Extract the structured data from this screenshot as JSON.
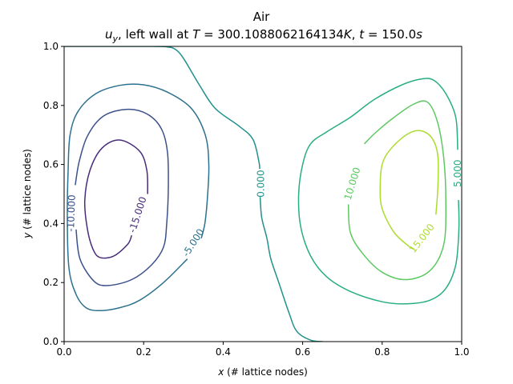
{
  "chart_data": {
    "type": "contour",
    "title": "Air",
    "subtitle_parts": {
      "var": "u",
      "var_sub": "y",
      "mid": ", left wall at ",
      "T_sym": "T",
      "T_val": " = 300.1088062164134",
      "T_unit": "K",
      "sep": ", ",
      "t_sym": "t",
      "t_val": " = 150.0",
      "t_unit": "s"
    },
    "xlabel_var": "x",
    "xlabel_rest": " (# lattice nodes)",
    "ylabel_var": "y",
    "ylabel_rest": " (# lattice nodes)",
    "xlim": [
      0.0,
      1.0
    ],
    "ylim": [
      0.0,
      1.0
    ],
    "x_ticks": [
      "0.0",
      "0.2",
      "0.4",
      "0.6",
      "0.8",
      "1.0"
    ],
    "y_ticks": [
      "0.0",
      "0.2",
      "0.4",
      "0.6",
      "0.8",
      "1.0"
    ],
    "grid": false,
    "levels": [
      {
        "level": -15.0,
        "label": "-15.000",
        "color": "#472c7a",
        "label_pos": [
          0.185,
          0.43
        ],
        "label_angle": -72,
        "paths": [
          [
            [
              0.21,
              0.5
            ],
            [
              0.208,
              0.58
            ],
            [
              0.19,
              0.645
            ],
            [
              0.14,
              0.683
            ],
            [
              0.095,
              0.655
            ],
            [
              0.065,
              0.58
            ],
            [
              0.052,
              0.48
            ],
            [
              0.058,
              0.385
            ],
            [
              0.072,
              0.315
            ],
            [
              0.09,
              0.285
            ],
            [
              0.125,
              0.29
            ],
            [
              0.16,
              0.33
            ],
            [
              0.17,
              0.36
            ]
          ]
        ]
      },
      {
        "level": -10.0,
        "label": "-10.000",
        "color": "#3b518b",
        "label_pos": [
          0.018,
          0.435
        ],
        "label_angle": -88,
        "paths": [
          [
            [
              0.03,
              0.38
            ],
            [
              0.04,
              0.28
            ],
            [
              0.075,
              0.205
            ],
            [
              0.11,
              0.19
            ],
            [
              0.17,
              0.21
            ],
            [
              0.22,
              0.26
            ],
            [
              0.25,
              0.32
            ],
            [
              0.258,
              0.4
            ],
            [
              0.262,
              0.52
            ],
            [
              0.26,
              0.64
            ],
            [
              0.245,
              0.72
            ],
            [
              0.21,
              0.77
            ],
            [
              0.16,
              0.787
            ],
            [
              0.1,
              0.765
            ],
            [
              0.06,
              0.7
            ],
            [
              0.038,
              0.61
            ],
            [
              0.028,
              0.53
            ]
          ]
        ]
      },
      {
        "level": -5.0,
        "label": "-5.000",
        "color": "#2c718e",
        "label_pos": [
          0.325,
          0.335
        ],
        "label_angle": -57,
        "paths": [
          [
            [
              0.31,
              0.28
            ],
            [
              0.25,
              0.2
            ],
            [
              0.19,
              0.14
            ],
            [
              0.14,
              0.115
            ],
            [
              0.09,
              0.105
            ],
            [
              0.055,
              0.115
            ],
            [
              0.03,
              0.16
            ],
            [
              0.012,
              0.25
            ],
            [
              0.008,
              0.42
            ],
            [
              0.01,
              0.58
            ],
            [
              0.015,
              0.7
            ],
            [
              0.035,
              0.78
            ],
            [
              0.08,
              0.84
            ],
            [
              0.14,
              0.868
            ],
            [
              0.2,
              0.87
            ],
            [
              0.26,
              0.845
            ],
            [
              0.32,
              0.79
            ],
            [
              0.355,
              0.7
            ],
            [
              0.364,
              0.6
            ],
            [
              0.36,
              0.48
            ],
            [
              0.354,
              0.4
            ],
            [
              0.345,
              0.35
            ]
          ]
        ]
      },
      {
        "level": 0.0,
        "label": "0.000",
        "color": "#21918c",
        "label_pos": [
          0.495,
          0.535
        ],
        "label_angle": -90,
        "paths": [
          [
            [
              0.0,
              1.0
            ],
            [
              0.22,
              1.0
            ],
            [
              0.26,
              0.998
            ],
            [
              0.28,
              0.99
            ],
            [
              0.3,
              0.96
            ],
            [
              0.34,
              0.87
            ],
            [
              0.38,
              0.79
            ],
            [
              0.44,
              0.73
            ],
            [
              0.475,
              0.685
            ],
            [
              0.49,
              0.61
            ],
            [
              0.492,
              0.585
            ]
          ],
          [
            [
              0.493,
              0.49
            ],
            [
              0.497,
              0.42
            ],
            [
              0.51,
              0.35
            ],
            [
              0.52,
              0.28
            ],
            [
              0.54,
              0.2
            ],
            [
              0.565,
              0.1
            ],
            [
              0.585,
              0.035
            ],
            [
              0.62,
              0.005
            ],
            [
              0.65,
              0.0
            ]
          ]
        ]
      },
      {
        "level": 5.0,
        "label": "5.000",
        "color": "#28ae80",
        "label_pos": [
          0.99,
          0.57
        ],
        "label_angle": -90,
        "paths": [
          [
            [
              0.99,
              0.65
            ],
            [
              0.985,
              0.76
            ],
            [
              0.96,
              0.84
            ],
            [
              0.93,
              0.885
            ],
            [
              0.9,
              0.89
            ],
            [
              0.85,
              0.87
            ],
            [
              0.78,
              0.82
            ],
            [
              0.72,
              0.76
            ],
            [
              0.66,
              0.71
            ],
            [
              0.62,
              0.67
            ],
            [
              0.6,
              0.6
            ],
            [
              0.59,
              0.5
            ],
            [
              0.595,
              0.39
            ],
            [
              0.62,
              0.29
            ],
            [
              0.66,
              0.22
            ],
            [
              0.72,
              0.17
            ],
            [
              0.8,
              0.135
            ],
            [
              0.86,
              0.128
            ],
            [
              0.92,
              0.14
            ],
            [
              0.96,
              0.18
            ],
            [
              0.985,
              0.26
            ],
            [
              0.993,
              0.38
            ],
            [
              0.992,
              0.48
            ]
          ]
        ]
      },
      {
        "level": 10.0,
        "label": "10.000",
        "color": "#5ec962",
        "label_pos": [
          0.725,
          0.535
        ],
        "label_angle": -73,
        "paths": [
          [
            [
              0.715,
              0.465
            ],
            [
              0.72,
              0.37
            ],
            [
              0.75,
              0.3
            ],
            [
              0.8,
              0.235
            ],
            [
              0.86,
              0.21
            ],
            [
              0.92,
              0.24
            ],
            [
              0.955,
              0.33
            ],
            [
              0.96,
              0.48
            ],
            [
              0.955,
              0.62
            ],
            [
              0.94,
              0.74
            ],
            [
              0.915,
              0.81
            ],
            [
              0.88,
              0.805
            ],
            [
              0.83,
              0.76
            ],
            [
              0.785,
              0.71
            ],
            [
              0.755,
              0.67
            ]
          ]
        ]
      },
      {
        "level": 15.0,
        "label": "15.000",
        "color": "#addc30",
        "label_pos": [
          0.9,
          0.35
        ],
        "label_angle": -52,
        "paths": [
          [
            [
              0.935,
              0.43
            ],
            [
              0.94,
              0.52
            ],
            [
              0.94,
              0.63
            ],
            [
              0.925,
              0.69
            ],
            [
              0.895,
              0.715
            ],
            [
              0.86,
              0.7
            ],
            [
              0.82,
              0.65
            ],
            [
              0.8,
              0.6
            ],
            [
              0.795,
              0.52
            ],
            [
              0.8,
              0.45
            ],
            [
              0.83,
              0.37
            ],
            [
              0.87,
              0.32
            ],
            [
              0.88,
              0.315
            ]
          ]
        ]
      }
    ]
  }
}
